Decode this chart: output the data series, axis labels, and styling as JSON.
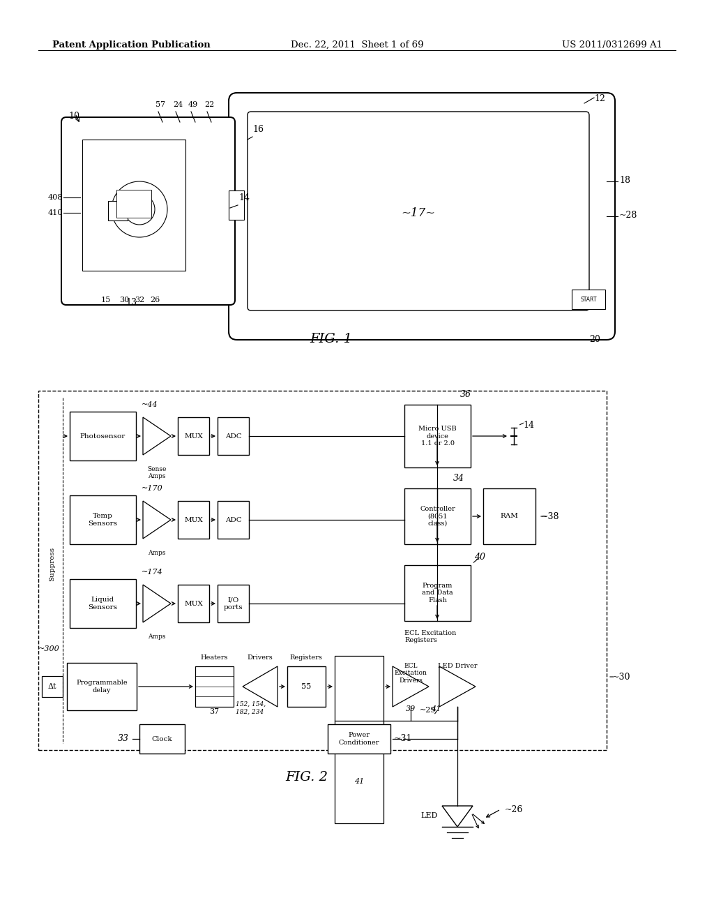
{
  "header_left": "Patent Application Publication",
  "header_mid": "Dec. 22, 2011  Sheet 1 of 69",
  "header_right": "US 2011/0312699 A1",
  "fig1_label": "FIG. 1",
  "fig2_label": "FIG. 2",
  "bg_color": "#ffffff",
  "line_color": "#000000"
}
